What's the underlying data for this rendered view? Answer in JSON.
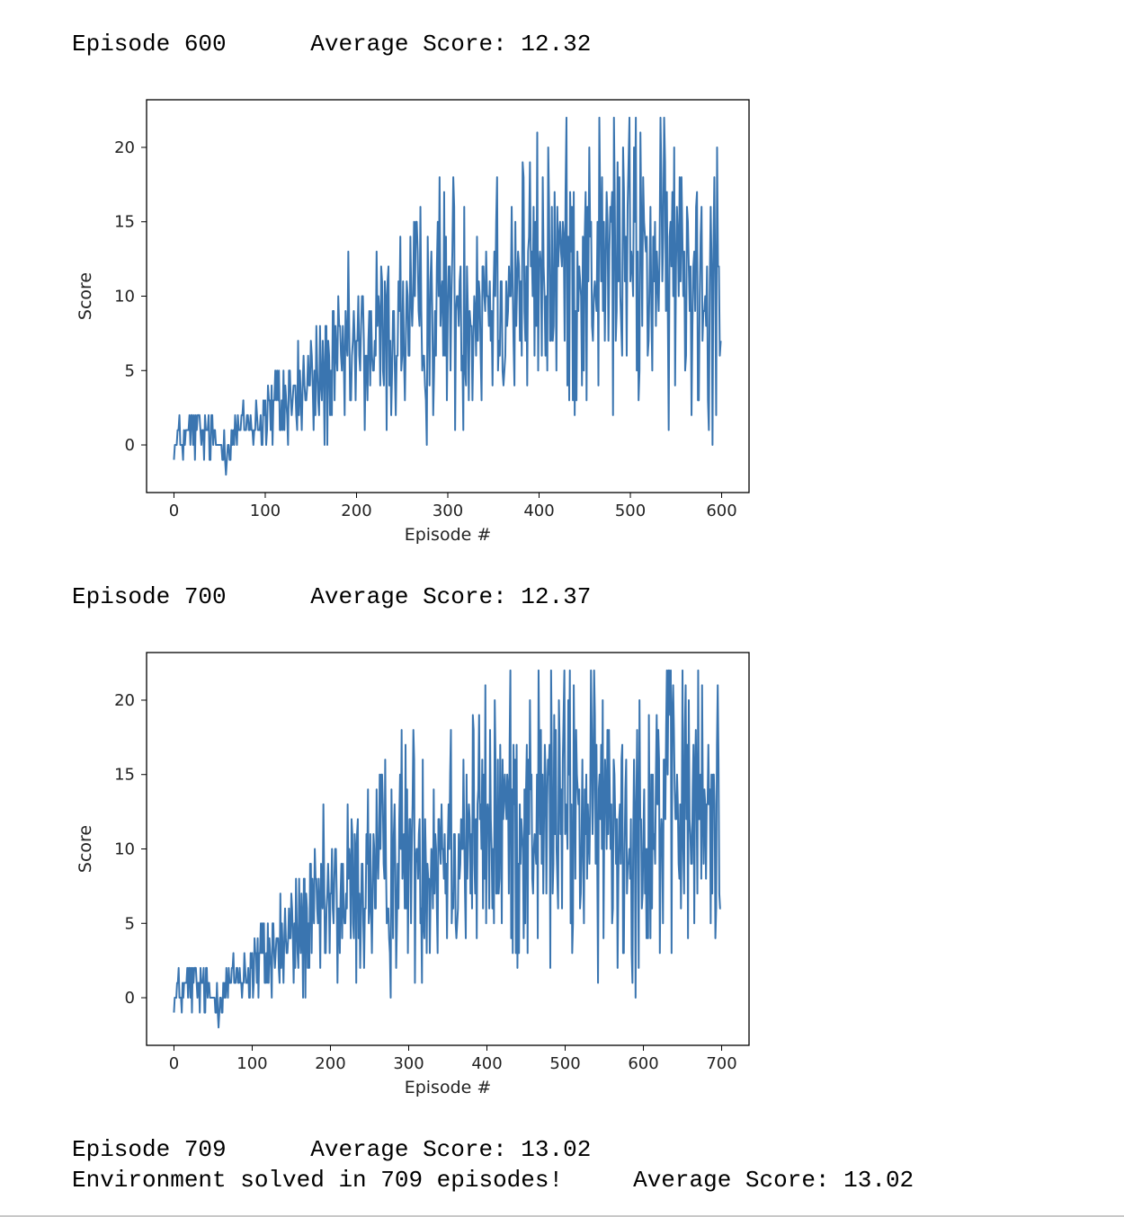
{
  "log": {
    "ep600_line": "Episode 600      Average Score: 12.32",
    "ep700_line": "Episode 700      Average Score: 12.37",
    "ep709_line": "Episode 709      Average Score: 13.02",
    "solved_line": "Environment solved in 709 episodes!     Average Score: 13.02"
  },
  "chart_data": [
    {
      "type": "line",
      "xlabel": "Episode #",
      "ylabel": "Score",
      "xlim": [
        -30,
        630
      ],
      "ylim": [
        -3.2,
        23.2
      ],
      "xticks": [
        0,
        100,
        200,
        300,
        400,
        500,
        600
      ],
      "yticks": [
        0,
        5,
        10,
        15,
        20
      ],
      "n_episodes": 600,
      "color": "#3a75b0",
      "series": [
        {
          "x": [
            0,
            25,
            50,
            75,
            100,
            125,
            150,
            175,
            200,
            225,
            250,
            275,
            300,
            325,
            350,
            375,
            400,
            425,
            450,
            475,
            500,
            525,
            550,
            575,
            599
          ],
          "values": [
            0,
            1,
            0,
            1,
            2,
            3,
            4,
            5,
            6,
            7,
            8,
            9,
            10,
            10,
            11,
            11,
            11,
            12,
            12,
            12,
            13,
            12,
            12,
            12,
            12
          ]
        }
      ]
    },
    {
      "type": "line",
      "xlabel": "Episode #",
      "ylabel": "Score",
      "xlim": [
        -35,
        735
      ],
      "ylim": [
        -3.2,
        23.2
      ],
      "xticks": [
        0,
        100,
        200,
        300,
        400,
        500,
        600,
        700
      ],
      "yticks": [
        0,
        5,
        10,
        15,
        20
      ],
      "n_episodes": 700,
      "color": "#3a75b0",
      "series": [
        {
          "x": [
            0,
            25,
            50,
            75,
            100,
            125,
            150,
            175,
            200,
            225,
            250,
            275,
            300,
            325,
            350,
            375,
            400,
            425,
            450,
            475,
            500,
            525,
            550,
            575,
            600,
            625,
            650,
            675,
            699
          ],
          "values": [
            0,
            1,
            0,
            1,
            2,
            3,
            4,
            5,
            6,
            7,
            8,
            9,
            10,
            10,
            11,
            11,
            11,
            12,
            12,
            12,
            13,
            12,
            12,
            12,
            12,
            13,
            13,
            12,
            12
          ]
        }
      ]
    }
  ]
}
